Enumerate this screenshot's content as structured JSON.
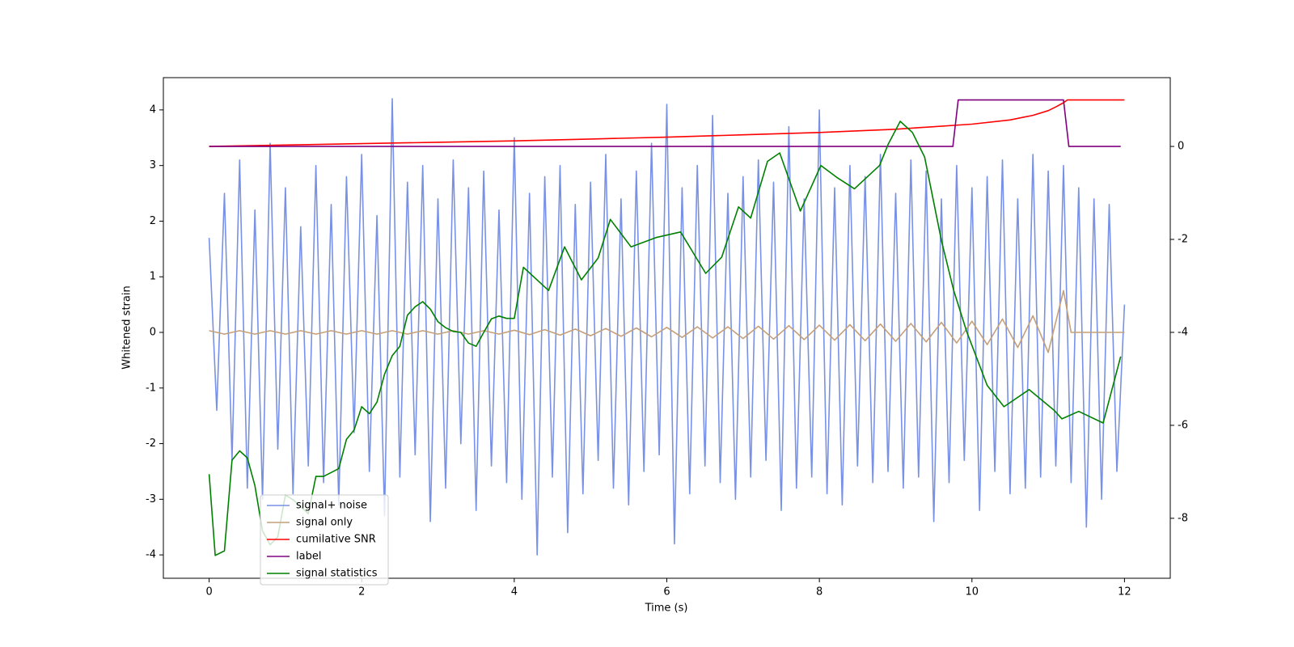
{
  "chart_data": {
    "type": "line",
    "xlabel": "Time (s)",
    "ylabel": "Whitened strain",
    "xlim": [
      -0.6,
      12.6
    ],
    "xticks": [
      0,
      2,
      4,
      6,
      8,
      10,
      12
    ],
    "ylim": [
      -4.42,
      4.58
    ],
    "yticks": [
      -4,
      -3,
      -2,
      -1,
      0,
      1,
      2,
      3,
      4
    ],
    "y2lim": [
      -9.29,
      1.48
    ],
    "y2ticks": [
      -8,
      -6,
      -4,
      -2,
      0
    ],
    "legend": "lower left",
    "series": [
      {
        "name": "signal+ noise",
        "color": "#7891e6",
        "axis": "y",
        "x": [
          0,
          0.1,
          0.2,
          0.3,
          0.4,
          0.5,
          0.6,
          0.7,
          0.8,
          0.9,
          1,
          1.1,
          1.2,
          1.3,
          1.4,
          1.5,
          1.6,
          1.7,
          1.8,
          1.9,
          2,
          2.1,
          2.2,
          2.3,
          2.4,
          2.5,
          2.6,
          2.7,
          2.8,
          2.9,
          3,
          3.1,
          3.2,
          3.3,
          3.4,
          3.5,
          3.6,
          3.7,
          3.8,
          3.9,
          4,
          4.1,
          4.2,
          4.3,
          4.4,
          4.5,
          4.6,
          4.7,
          4.8,
          4.9,
          5,
          5.1,
          5.2,
          5.3,
          5.4,
          5.5,
          5.6,
          5.7,
          5.8,
          5.9,
          6,
          6.1,
          6.2,
          6.3,
          6.4,
          6.5,
          6.6,
          6.7,
          6.8,
          6.9,
          7,
          7.1,
          7.2,
          7.3,
          7.4,
          7.5,
          7.6,
          7.7,
          7.8,
          7.9,
          8,
          8.1,
          8.2,
          8.3,
          8.4,
          8.5,
          8.6,
          8.7,
          8.8,
          8.9,
          9,
          9.1,
          9.2,
          9.3,
          9.4,
          9.5,
          9.6,
          9.7,
          9.8,
          9.9,
          10,
          10.1,
          10.2,
          10.3,
          10.4,
          10.5,
          10.6,
          10.7,
          10.8,
          10.9,
          11,
          11.1,
          11.2,
          11.3,
          11.4,
          11.5,
          11.6,
          11.7,
          11.8,
          11.9,
          12
        ],
        "values": [
          1.7,
          -1.4,
          2.5,
          -2.3,
          3.1,
          -2.8,
          2.2,
          -3.0,
          3.4,
          -2.1,
          2.6,
          -2.9,
          1.9,
          -2.4,
          3.0,
          -2.7,
          2.3,
          -3.1,
          2.8,
          -1.8,
          3.2,
          -2.5,
          2.1,
          -3.3,
          4.2,
          -2.6,
          2.7,
          -2.2,
          3.0,
          -3.4,
          2.4,
          -2.8,
          3.1,
          -2.0,
          2.6,
          -3.2,
          2.9,
          -2.4,
          2.2,
          -2.7,
          3.5,
          -3.0,
          2.5,
          -4.0,
          2.8,
          -2.6,
          3.0,
          -3.6,
          2.3,
          -2.9,
          2.7,
          -2.3,
          3.2,
          -2.8,
          2.4,
          -3.1,
          2.9,
          -2.5,
          3.4,
          -2.2,
          4.1,
          -3.8,
          2.6,
          -2.9,
          3.0,
          -2.4,
          3.9,
          -2.7,
          2.5,
          -3.0,
          2.8,
          -2.6,
          3.1,
          -2.3,
          2.7,
          -3.2,
          3.7,
          -2.8,
          2.4,
          -2.6,
          4.0,
          -2.9,
          2.6,
          -3.1,
          3.0,
          -2.4,
          2.8,
          -2.7,
          3.2,
          -2.5,
          2.5,
          -2.8,
          3.1,
          -2.6,
          2.9,
          -3.4,
          2.4,
          -2.7,
          3.0,
          -2.3,
          2.6,
          -3.2,
          2.8,
          -2.5,
          3.1,
          -2.9,
          2.4,
          -2.8,
          3.2,
          -2.6,
          2.9,
          -2.4,
          3.0,
          -2.7,
          2.6,
          -3.5,
          2.4,
          -3.0,
          2.3,
          -2.5,
          0.5
        ]
      },
      {
        "name": "signal only",
        "color": "#c4a07a",
        "axis": "y",
        "x": [
          0,
          0.2,
          0.4,
          0.6,
          0.8,
          1,
          1.2,
          1.4,
          1.6,
          1.8,
          2,
          2.2,
          2.4,
          2.6,
          2.8,
          3,
          3.2,
          3.4,
          3.6,
          3.8,
          4,
          4.2,
          4.4,
          4.6,
          4.8,
          5,
          5.2,
          5.4,
          5.6,
          5.8,
          6,
          6.2,
          6.4,
          6.6,
          6.8,
          7,
          7.2,
          7.4,
          7.6,
          7.8,
          8,
          8.2,
          8.4,
          8.6,
          8.8,
          9,
          9.2,
          9.4,
          9.6,
          9.8,
          10,
          10.2,
          10.4,
          10.6,
          10.8,
          11,
          11.2,
          11.3,
          12
        ],
        "values": [
          0.03,
          -0.03,
          0.03,
          -0.03,
          0.03,
          -0.03,
          0.03,
          -0.03,
          0.03,
          -0.03,
          0.03,
          -0.03,
          0.03,
          -0.03,
          0.03,
          -0.03,
          0.03,
          -0.03,
          0.03,
          -0.03,
          0.04,
          -0.04,
          0.05,
          -0.05,
          0.06,
          -0.06,
          0.07,
          -0.07,
          0.08,
          -0.08,
          0.09,
          -0.09,
          0.1,
          -0.1,
          0.1,
          -0.11,
          0.11,
          -0.12,
          0.12,
          -0.13,
          0.13,
          -0.14,
          0.14,
          -0.15,
          0.15,
          -0.16,
          0.16,
          -0.17,
          0.18,
          -0.19,
          0.2,
          -0.22,
          0.24,
          -0.27,
          0.3,
          -0.36,
          0.75,
          0,
          0
        ]
      },
      {
        "name": "cumilative SNR",
        "color": "#ff0000",
        "axis": "y2",
        "x": [
          0,
          1,
          2,
          3,
          4,
          5,
          6,
          7,
          8,
          9,
          10,
          10.5,
          10.8,
          11,
          11.1,
          11.2,
          11.25,
          12
        ],
        "values": [
          0,
          0.03,
          0.06,
          0.09,
          0.12,
          0.16,
          0.2,
          0.25,
          0.3,
          0.37,
          0.48,
          0.57,
          0.67,
          0.77,
          0.85,
          0.94,
          1,
          1
        ]
      },
      {
        "name": "label",
        "color": "#800080",
        "axis": "y2",
        "x": [
          0,
          9.75,
          9.82,
          11.2,
          11.27,
          11.95
        ],
        "values": [
          0,
          0,
          1,
          1,
          0,
          0
        ]
      },
      {
        "name": "signal statistics",
        "color": "#008000",
        "axis": "y2",
        "x": [
          0,
          0.08,
          0.2,
          0.3,
          0.4,
          0.5,
          0.6,
          0.7,
          0.8,
          0.9,
          1,
          1.1,
          1.3,
          1.4,
          1.5,
          1.7,
          1.8,
          1.9,
          2,
          2.1,
          2.2,
          2.3,
          2.4,
          2.5,
          2.6,
          2.7,
          2.8,
          2.9,
          3,
          3.1,
          3.2,
          3.3,
          3.4,
          3.5,
          3.6,
          3.7,
          3.8,
          3.9,
          4,
          4.12,
          4.45,
          4.66,
          4.88,
          5.1,
          5.26,
          5.53,
          5.86,
          6.18,
          6.51,
          6.72,
          6.94,
          7.1,
          7.32,
          7.48,
          7.75,
          8.02,
          8.24,
          8.46,
          8.79,
          8.9,
          9.06,
          9.22,
          9.38,
          9.6,
          9.76,
          9.93,
          10.2,
          10.42,
          10.75,
          11.08,
          11.18,
          11.4,
          11.72,
          11.95
        ],
        "values": [
          -7.05,
          -8.8,
          -8.7,
          -6.75,
          -6.55,
          -6.7,
          -7.3,
          -8.27,
          -8.57,
          -8.4,
          -7.5,
          -7.6,
          -7.9,
          -7.1,
          -7.1,
          -6.93,
          -6.3,
          -6.1,
          -5.6,
          -5.75,
          -5.5,
          -4.9,
          -4.5,
          -4.3,
          -3.63,
          -3.45,
          -3.34,
          -3.5,
          -3.77,
          -3.9,
          -3.98,
          -4.0,
          -4.23,
          -4.3,
          -4.0,
          -3.71,
          -3.65,
          -3.7,
          -3.7,
          -2.6,
          -3.1,
          -2.16,
          -2.87,
          -2.4,
          -1.57,
          -2.16,
          -1.96,
          -1.84,
          -2.73,
          -2.38,
          -1.3,
          -1.54,
          -0.32,
          -0.14,
          -1.39,
          -0.41,
          -0.68,
          -0.91,
          -0.41,
          0.04,
          0.54,
          0.3,
          -0.23,
          -2.02,
          -3.09,
          -3.98,
          -5.14,
          -5.6,
          -5.23,
          -5.68,
          -5.86,
          -5.7,
          -5.95,
          -4.52
        ]
      }
    ]
  }
}
